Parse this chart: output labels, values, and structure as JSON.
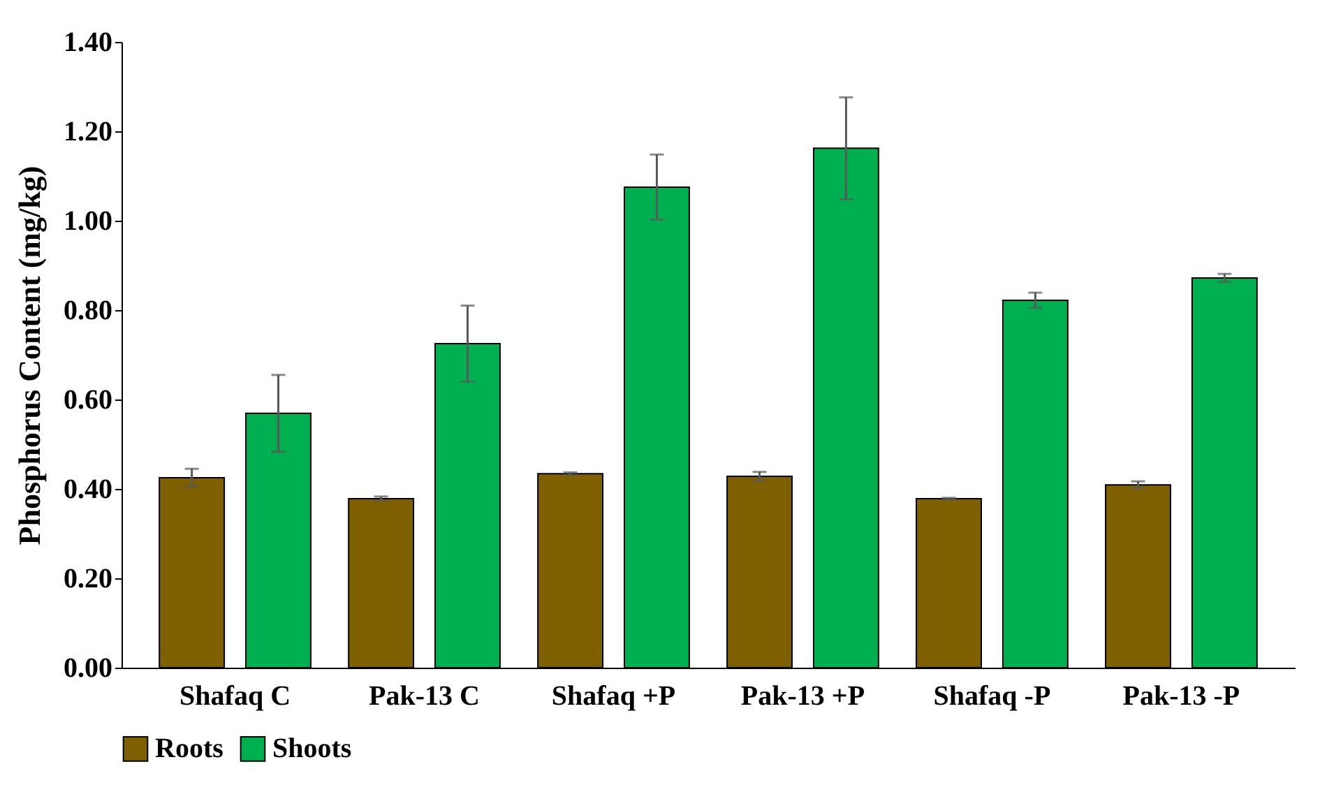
{
  "chart_data": {
    "type": "bar",
    "ylabel": "Phosphorus Content (mg/kg)",
    "categories": [
      "Shafaq C",
      "Pak-13 C",
      "Shafaq +P",
      "Pak-13 +P",
      "Shafaq -P",
      "Pak-13 -P"
    ],
    "series": [
      {
        "name": "Roots",
        "color": "#7f6000",
        "values": [
          0.425,
          0.378,
          0.434,
          0.428,
          0.378,
          0.409
        ],
        "errors": [
          0.02,
          0.005,
          0.003,
          0.01,
          0.002,
          0.008
        ]
      },
      {
        "name": "Shoots",
        "color": "#00b050",
        "values": [
          0.569,
          0.725,
          1.075,
          1.162,
          0.822,
          0.872
        ],
        "errors": [
          0.086,
          0.085,
          0.073,
          0.114,
          0.017,
          0.009
        ]
      }
    ],
    "ylim": [
      0,
      1.4
    ],
    "yticks": [
      {
        "value": 0,
        "label": "0.00"
      },
      {
        "value": 0.2,
        "label": "0.20"
      },
      {
        "value": 0.4,
        "label": "0.40"
      },
      {
        "value": 0.6,
        "label": "0.60"
      },
      {
        "value": 0.8,
        "label": "0.80"
      },
      {
        "value": 1,
        "label": "1.00"
      },
      {
        "value": 1.2,
        "label": "1.20"
      },
      {
        "value": 1.4,
        "label": "1.40"
      }
    ],
    "grid": false,
    "legend": "bottom"
  }
}
